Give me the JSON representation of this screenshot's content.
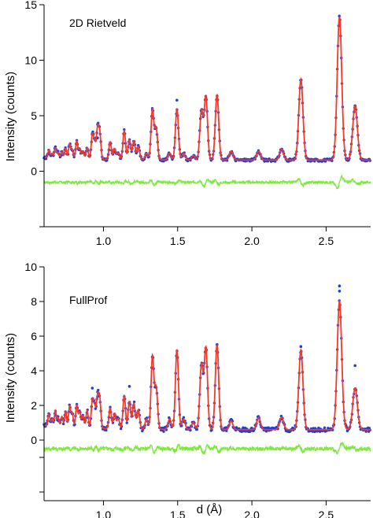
{
  "chart_data": [
    {
      "type": "line",
      "title": "2D Rietveld",
      "xlabel": "",
      "ylabel": "Intensity (counts)",
      "xlim": [
        0.6,
        2.8
      ],
      "ylim": [
        -5,
        15
      ],
      "yticks": [
        0,
        5,
        10,
        15
      ],
      "yticks_minor": [
        -5
      ],
      "xticks": [
        1.0,
        1.5,
        2.0,
        2.5
      ],
      "xtick_labels": [
        "1.0",
        "1.5",
        "2.0",
        "2.5"
      ],
      "background": 1.0,
      "difference_offset": -1.0,
      "colors": {
        "observed": "#1f3fd6",
        "calculated": "#f23a2c",
        "difference": "#7ee83f"
      },
      "series": [
        {
          "name": "observed",
          "style": "dots"
        },
        {
          "name": "calculated",
          "style": "line"
        },
        {
          "name": "difference",
          "style": "line"
        }
      ],
      "peaks": {
        "d": [
          0.633,
          0.654,
          0.676,
          0.695,
          0.72,
          0.745,
          0.772,
          0.79,
          0.82,
          0.84,
          0.862,
          0.89,
          0.925,
          0.94,
          0.96,
          0.975,
          1.045,
          1.075,
          1.1,
          1.14,
          1.175,
          1.205,
          1.235,
          1.29,
          1.33,
          1.355,
          1.445,
          1.495,
          1.54,
          1.605,
          1.66,
          1.69,
          1.765,
          1.86,
          2.045,
          2.2,
          2.33,
          2.59,
          2.695
        ],
        "height": [
          0.7,
          0.4,
          0.9,
          0.5,
          0.6,
          0.9,
          1.3,
          0.8,
          1.6,
          0.9,
          0.7,
          1.0,
          2.1,
          1.4,
          2.6,
          2.3,
          1.6,
          1.0,
          0.6,
          2.6,
          1.8,
          1.7,
          1.2,
          0.6,
          4.5,
          2.8,
          0.6,
          4.6,
          0.6,
          0.4,
          4.4,
          5.7,
          5.9,
          0.8,
          0.8,
          1.0,
          7.3,
          12.9,
          4.9
        ]
      },
      "observed_spikes": {
        "d": [
          1.33,
          1.495,
          1.69,
          0.925,
          0.96,
          2.695
        ],
        "y": [
          5.5,
          6.4,
          6.6,
          3.4,
          3.0,
          5.9
        ]
      }
    },
    {
      "type": "line",
      "title": "FullProf",
      "xlabel": "d (Å)",
      "ylabel": "Intensity (counts)",
      "xlim": [
        0.6,
        2.8
      ],
      "ylim": [
        -3.5,
        10
      ],
      "yticks": [
        0,
        2,
        4,
        6,
        8,
        10
      ],
      "yticks_minor": [
        -1,
        -3
      ],
      "xticks": [
        1.0,
        1.5,
        2.0,
        2.5
      ],
      "xtick_labels": [
        "1.0",
        "1.5",
        "2.0",
        "2.5"
      ],
      "background": 0.6,
      "difference_offset": -0.5,
      "colors": {
        "observed": "#1f3fd6",
        "calculated": "#f23a2c",
        "difference": "#7ee83f"
      },
      "series": [
        {
          "name": "observed",
          "style": "dots"
        },
        {
          "name": "calculated",
          "style": "line"
        },
        {
          "name": "difference",
          "style": "line"
        }
      ],
      "peaks": {
        "d": [
          0.633,
          0.654,
          0.676,
          0.695,
          0.72,
          0.745,
          0.772,
          0.79,
          0.82,
          0.84,
          0.862,
          0.89,
          0.925,
          0.94,
          0.96,
          0.975,
          1.045,
          1.075,
          1.1,
          1.14,
          1.175,
          1.205,
          1.235,
          1.29,
          1.33,
          1.355,
          1.445,
          1.495,
          1.54,
          1.605,
          1.66,
          1.69,
          1.765,
          1.86,
          2.045,
          2.2,
          2.33,
          2.59,
          2.695
        ],
        "height": [
          0.7,
          0.4,
          0.9,
          0.5,
          0.6,
          0.9,
          1.2,
          0.8,
          1.3,
          0.9,
          0.7,
          1.0,
          1.5,
          1.2,
          1.7,
          1.6,
          1.2,
          0.9,
          0.6,
          1.9,
          1.6,
          1.5,
          1.1,
          0.6,
          4.2,
          2.4,
          0.6,
          4.6,
          0.6,
          0.4,
          3.7,
          4.7,
          4.9,
          0.5,
          0.7,
          0.7,
          4.6,
          7.4,
          2.4
        ]
      },
      "observed_spikes": {
        "d": [
          1.33,
          1.495,
          1.69,
          1.765,
          2.33,
          2.59,
          2.59,
          2.695,
          0.925,
          0.96,
          1.175
        ],
        "y": [
          4.8,
          4.8,
          5.1,
          5.5,
          5.4,
          8.9,
          8.6,
          4.3,
          3.0,
          2.5,
          3.1
        ]
      }
    }
  ]
}
